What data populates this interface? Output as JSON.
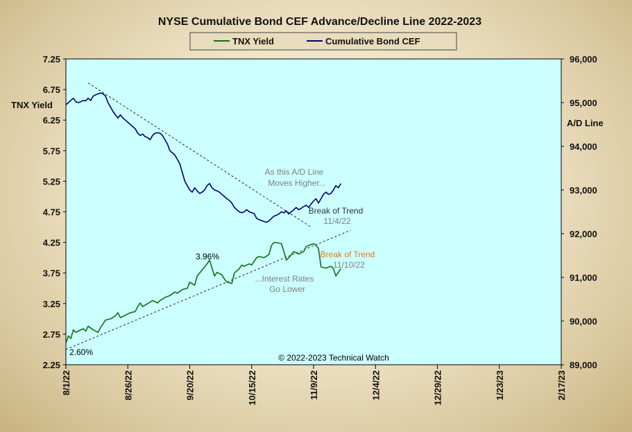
{
  "chart_data": {
    "type": "line",
    "title": "NYSE Cumulative  Bond CEF Advance/Decline  Line 2022-2023",
    "y_left_label": "TNX  Yield",
    "y_right_label": "A/D Line",
    "x_ticks": [
      "8/1/22",
      "8/26/22",
      "9/20/22",
      "10/15/22",
      "11/9/22",
      "12/4/22",
      "12/29/22",
      "1/23/23",
      "2/17/23"
    ],
    "x_range_days": [
      0,
      200
    ],
    "y_left_ticks": [
      "2.25",
      "2.75",
      "3.25",
      "3.75",
      "4.25",
      "4.75",
      "5.25",
      "5.75",
      "6.25",
      "6.75",
      "7.25"
    ],
    "y_left_range": [
      2.25,
      7.25
    ],
    "y_right_ticks": [
      "89,000",
      "90,000",
      "91,000",
      "92,000",
      "93,000",
      "94,000",
      "95,000",
      "96,000"
    ],
    "y_right_range": [
      89000,
      96000
    ],
    "grid": false,
    "legend_position": "top-center",
    "series": [
      {
        "name": "TNX Yield",
        "axis": "left",
        "color": "#107010",
        "points": [
          [
            0,
            2.6
          ],
          [
            1,
            2.72
          ],
          [
            2,
            2.68
          ],
          [
            3,
            2.82
          ],
          [
            4,
            2.78
          ],
          [
            5,
            2.8
          ],
          [
            7,
            2.84
          ],
          [
            8,
            2.8
          ],
          [
            9,
            2.88
          ],
          [
            11,
            2.82
          ],
          [
            13,
            2.78
          ],
          [
            14,
            2.86
          ],
          [
            15,
            2.92
          ],
          [
            16,
            2.98
          ],
          [
            18,
            3.0
          ],
          [
            20,
            3.05
          ],
          [
            21,
            3.1
          ],
          [
            22,
            3.02
          ],
          [
            24,
            3.06
          ],
          [
            26,
            3.1
          ],
          [
            28,
            3.12
          ],
          [
            29,
            3.2
          ],
          [
            30,
            3.26
          ],
          [
            31,
            3.2
          ],
          [
            33,
            3.25
          ],
          [
            35,
            3.3
          ],
          [
            37,
            3.26
          ],
          [
            38,
            3.3
          ],
          [
            40,
            3.35
          ],
          [
            42,
            3.38
          ],
          [
            44,
            3.44
          ],
          [
            45,
            3.42
          ],
          [
            47,
            3.48
          ],
          [
            49,
            3.5
          ],
          [
            50,
            3.6
          ],
          [
            52,
            3.55
          ],
          [
            53,
            3.7
          ],
          [
            55,
            3.8
          ],
          [
            57,
            3.9
          ],
          [
            58,
            3.96
          ],
          [
            60,
            3.7
          ],
          [
            61,
            3.76
          ],
          [
            63,
            3.72
          ],
          [
            64,
            3.65
          ],
          [
            65,
            3.6
          ],
          [
            67,
            3.58
          ],
          [
            68,
            3.75
          ],
          [
            70,
            3.82
          ],
          [
            71,
            3.88
          ],
          [
            72,
            3.86
          ],
          [
            74,
            3.9
          ],
          [
            75,
            3.88
          ],
          [
            77,
            4.0
          ],
          [
            78,
            4.02
          ],
          [
            80,
            4.0
          ],
          [
            82,
            4.05
          ],
          [
            83,
            4.2
          ],
          [
            84,
            4.25
          ],
          [
            86,
            4.24
          ],
          [
            87,
            4.23
          ],
          [
            88,
            4.1
          ],
          [
            89,
            3.96
          ],
          [
            90,
            4.0
          ],
          [
            91,
            4.05
          ],
          [
            92,
            4.1
          ],
          [
            94,
            4.06
          ],
          [
            96,
            4.1
          ],
          [
            97,
            4.18
          ],
          [
            98,
            4.2
          ],
          [
            100,
            4.23
          ],
          [
            101,
            4.2
          ],
          [
            102,
            4.15
          ],
          [
            103,
            3.85
          ],
          [
            105,
            3.83
          ],
          [
            107,
            3.86
          ],
          [
            108,
            3.82
          ],
          [
            109,
            3.7
          ],
          [
            110,
            3.76
          ],
          [
            111,
            3.82
          ]
        ]
      },
      {
        "name": "Cumulative Bond CEF",
        "axis": "right",
        "color": "#000070",
        "points": [
          [
            0,
            94950
          ],
          [
            1,
            95000
          ],
          [
            2,
            95050
          ],
          [
            3,
            95100
          ],
          [
            4,
            95020
          ],
          [
            5,
            95000
          ],
          [
            6,
            95020
          ],
          [
            7,
            95050
          ],
          [
            8,
            95040
          ],
          [
            9,
            95100
          ],
          [
            10,
            95050
          ],
          [
            11,
            95150
          ],
          [
            12,
            95180
          ],
          [
            13,
            95200
          ],
          [
            14,
            95220
          ],
          [
            15,
            95200
          ],
          [
            16,
            95150
          ],
          [
            17,
            95000
          ],
          [
            18,
            94900
          ],
          [
            19,
            94800
          ],
          [
            20,
            94720
          ],
          [
            21,
            94650
          ],
          [
            22,
            94720
          ],
          [
            23,
            94650
          ],
          [
            24,
            94600
          ],
          [
            25,
            94550
          ],
          [
            26,
            94500
          ],
          [
            27,
            94450
          ],
          [
            28,
            94400
          ],
          [
            29,
            94300
          ],
          [
            30,
            94250
          ],
          [
            31,
            94280
          ],
          [
            32,
            94220
          ],
          [
            33,
            94200
          ],
          [
            34,
            94150
          ],
          [
            35,
            94250
          ],
          [
            36,
            94300
          ],
          [
            37,
            94310
          ],
          [
            38,
            94300
          ],
          [
            39,
            94250
          ],
          [
            40,
            94150
          ],
          [
            41,
            94050
          ],
          [
            42,
            93900
          ],
          [
            43,
            93850
          ],
          [
            44,
            93800
          ],
          [
            45,
            93700
          ],
          [
            46,
            93600
          ],
          [
            47,
            93400
          ],
          [
            48,
            93200
          ],
          [
            49,
            93100
          ],
          [
            50,
            93000
          ],
          [
            51,
            92950
          ],
          [
            52,
            93050
          ],
          [
            53,
            92980
          ],
          [
            54,
            92920
          ],
          [
            55,
            92950
          ],
          [
            56,
            93000
          ],
          [
            57,
            93100
          ],
          [
            58,
            93150
          ],
          [
            59,
            93050
          ],
          [
            60,
            93000
          ],
          [
            61,
            92980
          ],
          [
            62,
            92950
          ],
          [
            63,
            92900
          ],
          [
            64,
            92850
          ],
          [
            65,
            92800
          ],
          [
            66,
            92760
          ],
          [
            67,
            92700
          ],
          [
            68,
            92600
          ],
          [
            69,
            92550
          ],
          [
            70,
            92500
          ],
          [
            71,
            92480
          ],
          [
            72,
            92500
          ],
          [
            73,
            92550
          ],
          [
            74,
            92500
          ],
          [
            75,
            92480
          ],
          [
            76,
            92460
          ],
          [
            77,
            92350
          ],
          [
            78,
            92320
          ],
          [
            79,
            92300
          ],
          [
            80,
            92280
          ],
          [
            81,
            92260
          ],
          [
            82,
            92290
          ],
          [
            83,
            92350
          ],
          [
            84,
            92400
          ],
          [
            85,
            92420
          ],
          [
            86,
            92450
          ],
          [
            87,
            92500
          ],
          [
            88,
            92480
          ],
          [
            89,
            92520
          ],
          [
            90,
            92450
          ],
          [
            91,
            92500
          ],
          [
            92,
            92550
          ],
          [
            93,
            92600
          ],
          [
            94,
            92550
          ],
          [
            95,
            92580
          ],
          [
            96,
            92620
          ],
          [
            97,
            92650
          ],
          [
            98,
            92600
          ],
          [
            99,
            92680
          ],
          [
            100,
            92750
          ],
          [
            101,
            92800
          ],
          [
            102,
            92700
          ],
          [
            103,
            92800
          ],
          [
            104,
            92900
          ],
          [
            105,
            92950
          ],
          [
            106,
            92900
          ],
          [
            107,
            92920
          ],
          [
            108,
            93000
          ],
          [
            109,
            93100
          ],
          [
            110,
            93050
          ],
          [
            111,
            93150
          ]
        ]
      }
    ],
    "annotations": [
      {
        "id": "yield-high",
        "text": "3.96%",
        "color": "#000000"
      },
      {
        "id": "yield-start",
        "text": "2.60%",
        "color": "#000000"
      },
      {
        "id": "ad-note-1",
        "text": "As this A/D Line",
        "color": "#808080"
      },
      {
        "id": "ad-note-2",
        "text": "Moves  Higher...",
        "color": "#808080"
      },
      {
        "id": "ad-break-1",
        "text": "Break of Trend",
        "color": "#333333"
      },
      {
        "id": "ad-break-2",
        "text": "11/4/22",
        "color": "#808080"
      },
      {
        "id": "y-break-1",
        "text": "Break  of Trend",
        "color": "#e07820"
      },
      {
        "id": "y-break-2",
        "text": "11/10/22",
        "color": "#808080"
      },
      {
        "id": "y-note-1",
        "text": "...Interest Rates",
        "color": "#808080"
      },
      {
        "id": "y-note-2",
        "text": "Go Lower",
        "color": "#808080"
      },
      {
        "id": "copyright",
        "text": "© 2022-2023  Technical  Watch",
        "color": "#000000"
      }
    ],
    "trendlines": [
      {
        "name": "ad-line-resistance",
        "axis": "right",
        "from": [
          9,
          95450
        ],
        "to": [
          99,
          92150
        ]
      },
      {
        "name": "yield-support",
        "axis": "left",
        "from": [
          0,
          2.5
        ],
        "to": [
          115,
          4.45
        ]
      }
    ],
    "colors": {
      "plot_background": "#ccffff",
      "frame": "#000000"
    }
  }
}
